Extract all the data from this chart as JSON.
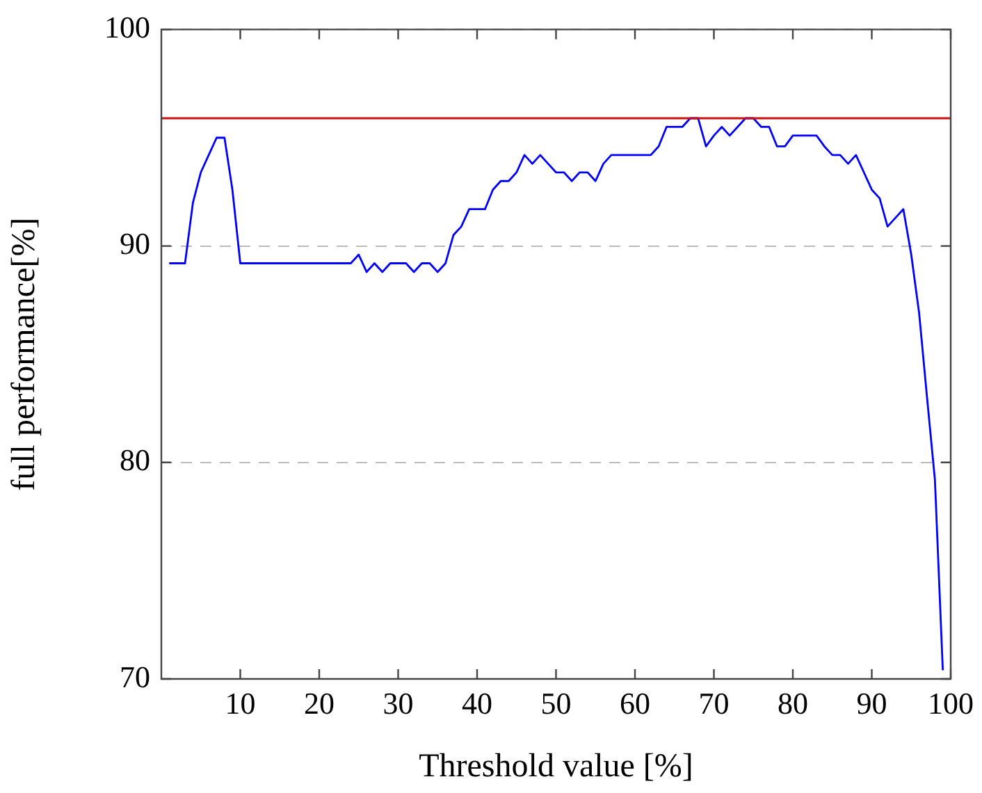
{
  "chart_data": {
    "type": "line",
    "xlabel": "Threshold value [%]",
    "ylabel": "full performance[%]",
    "x": [
      1,
      2,
      3,
      4,
      5,
      6,
      7,
      8,
      9,
      10,
      11,
      12,
      13,
      14,
      15,
      16,
      17,
      18,
      19,
      20,
      21,
      22,
      23,
      24,
      25,
      26,
      27,
      28,
      29,
      30,
      31,
      32,
      33,
      34,
      35,
      36,
      37,
      38,
      39,
      40,
      41,
      42,
      43,
      44,
      45,
      46,
      47,
      48,
      49,
      50,
      51,
      52,
      53,
      54,
      55,
      56,
      57,
      58,
      59,
      60,
      61,
      62,
      63,
      64,
      65,
      66,
      67,
      68,
      69,
      70,
      71,
      72,
      73,
      74,
      75,
      76,
      77,
      78,
      79,
      80,
      81,
      82,
      83,
      84,
      85,
      86,
      87,
      88,
      89,
      90,
      91,
      92,
      93,
      94,
      95,
      96,
      97,
      98,
      99
    ],
    "series": [
      {
        "color": "#0000ff",
        "values": [
          89.2,
          89.2,
          89.2,
          92.0,
          93.4,
          94.2,
          95.0,
          95.0,
          92.6,
          89.2,
          89.2,
          89.2,
          89.2,
          89.2,
          89.2,
          89.2,
          89.2,
          89.2,
          89.2,
          89.2,
          89.2,
          89.2,
          89.2,
          89.2,
          89.6,
          88.8,
          89.2,
          88.8,
          89.2,
          89.2,
          89.2,
          88.8,
          89.2,
          89.2,
          88.8,
          89.2,
          90.5,
          90.9,
          91.7,
          91.7,
          91.7,
          92.6,
          93.0,
          93.0,
          93.4,
          94.2,
          93.8,
          94.2,
          93.8,
          93.4,
          93.4,
          93.0,
          93.4,
          93.4,
          93.0,
          93.8,
          94.2,
          94.2,
          94.2,
          94.2,
          94.2,
          94.2,
          94.6,
          95.5,
          95.5,
          95.5,
          95.9,
          95.9,
          94.6,
          95.1,
          95.5,
          95.1,
          95.5,
          95.9,
          95.9,
          95.5,
          95.5,
          94.6,
          94.6,
          95.1,
          95.1,
          95.1,
          95.1,
          94.6,
          94.2,
          94.2,
          93.8,
          94.2,
          93.4,
          92.6,
          92.2,
          90.9,
          91.3,
          91.7,
          89.6,
          86.9,
          83.0,
          79.2,
          70.4
        ]
      }
    ],
    "xlim": [
      0,
      100
    ],
    "xticks": [
      10,
      20,
      30,
      40,
      50,
      60,
      70,
      80,
      90,
      100
    ],
    "ylim": [
      70,
      100
    ],
    "yticks": [
      70,
      80,
      90,
      100
    ],
    "grid": "y",
    "legend": false,
    "marker": "none",
    "line_style": "solid",
    "ref_lines": [
      {
        "axis": "y",
        "value": 95.9,
        "color": "#cc1111"
      }
    ]
  }
}
